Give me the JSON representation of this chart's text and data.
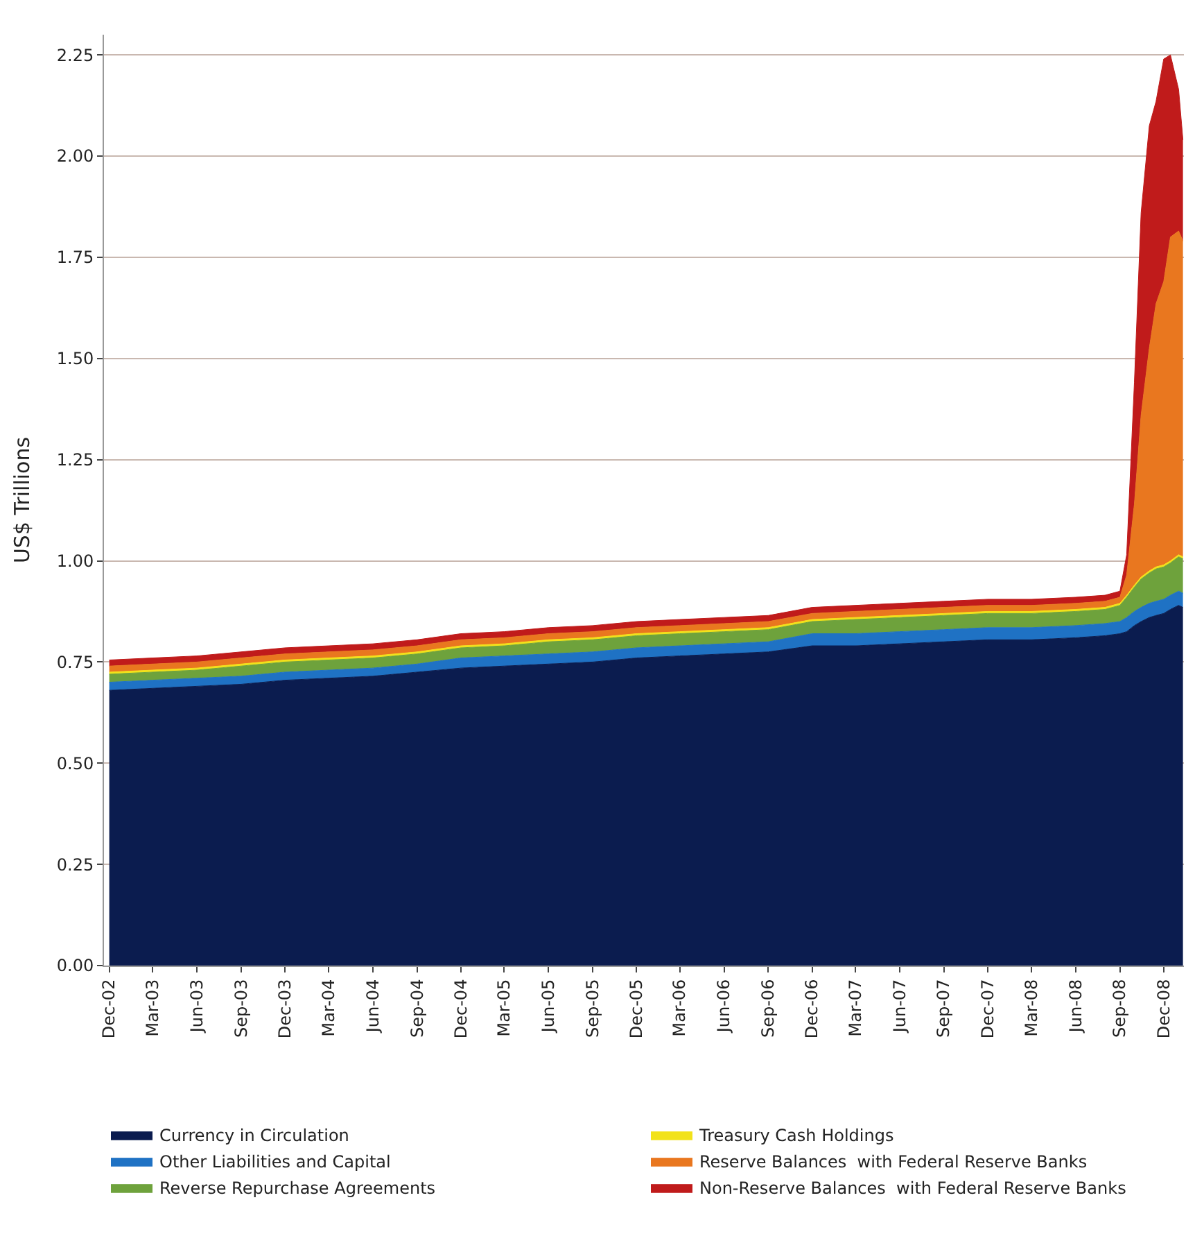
{
  "chart_data": {
    "type": "area",
    "stacked": true,
    "ylabel": "US$ Trillions",
    "legend": "bottom",
    "grid": "y",
    "x": [
      "2002-12-01",
      "2003-03-01",
      "2003-06-01",
      "2003-09-01",
      "2003-12-01",
      "2004-03-01",
      "2004-06-01",
      "2004-09-01",
      "2004-12-01",
      "2005-03-01",
      "2005-06-01",
      "2005-09-01",
      "2005-12-01",
      "2006-03-01",
      "2006-06-01",
      "2006-09-01",
      "2006-12-01",
      "2007-03-01",
      "2007-06-01",
      "2007-09-01",
      "2007-12-01",
      "2008-03-01",
      "2008-06-01",
      "2008-08-01",
      "2008-09-01",
      "2008-09-15",
      "2008-10-01",
      "2008-10-15",
      "2008-11-01",
      "2008-11-15",
      "2008-12-01",
      "2008-12-15",
      "2009-01-01",
      "2009-01-10"
    ],
    "series": [
      {
        "name": "Currency in Circulation",
        "color": "#0b1c4f",
        "values": [
          0.68,
          0.685,
          0.69,
          0.695,
          0.705,
          0.71,
          0.715,
          0.725,
          0.735,
          0.74,
          0.745,
          0.75,
          0.76,
          0.765,
          0.77,
          0.775,
          0.79,
          0.79,
          0.795,
          0.8,
          0.805,
          0.805,
          0.81,
          0.815,
          0.82,
          0.825,
          0.84,
          0.85,
          0.86,
          0.865,
          0.87,
          0.88,
          0.89,
          0.885
        ]
      },
      {
        "name": "Other Liabilities and Capital",
        "color": "#1f72c4",
        "values": [
          0.02,
          0.02,
          0.02,
          0.02,
          0.02,
          0.02,
          0.02,
          0.02,
          0.025,
          0.025,
          0.025,
          0.025,
          0.025,
          0.025,
          0.025,
          0.025,
          0.03,
          0.03,
          0.03,
          0.03,
          0.03,
          0.03,
          0.03,
          0.03,
          0.03,
          0.035,
          0.035,
          0.035,
          0.035,
          0.035,
          0.035,
          0.035,
          0.035,
          0.035
        ]
      },
      {
        "name": "Reverse Repurchase Agreements",
        "color": "#6ea23c",
        "values": [
          0.02,
          0.02,
          0.02,
          0.025,
          0.025,
          0.025,
          0.025,
          0.025,
          0.025,
          0.025,
          0.03,
          0.03,
          0.03,
          0.03,
          0.03,
          0.03,
          0.03,
          0.035,
          0.035,
          0.035,
          0.035,
          0.035,
          0.035,
          0.035,
          0.04,
          0.05,
          0.06,
          0.07,
          0.075,
          0.08,
          0.08,
          0.08,
          0.085,
          0.085
        ]
      },
      {
        "name": "Treasury Cash Holdings",
        "color": "#f2e21a",
        "values": [
          0.005,
          0.005,
          0.005,
          0.005,
          0.005,
          0.005,
          0.005,
          0.005,
          0.005,
          0.005,
          0.005,
          0.005,
          0.005,
          0.005,
          0.005,
          0.005,
          0.005,
          0.005,
          0.005,
          0.005,
          0.005,
          0.005,
          0.005,
          0.005,
          0.005,
          0.005,
          0.005,
          0.005,
          0.005,
          0.005,
          0.005,
          0.005,
          0.005,
          0.005
        ]
      },
      {
        "name": "Reserve Balances  with Federal Reserve Banks",
        "color": "#e9771f",
        "values": [
          0.015,
          0.015,
          0.015,
          0.015,
          0.015,
          0.015,
          0.015,
          0.015,
          0.015,
          0.015,
          0.015,
          0.015,
          0.015,
          0.015,
          0.015,
          0.015,
          0.015,
          0.015,
          0.015,
          0.015,
          0.015,
          0.015,
          0.015,
          0.015,
          0.015,
          0.05,
          0.2,
          0.4,
          0.55,
          0.65,
          0.7,
          0.8,
          0.8,
          0.78
        ]
      },
      {
        "name": "Non-Reserve Balances  with Federal Reserve Banks",
        "color": "#c01b1b",
        "values": [
          0.015,
          0.015,
          0.015,
          0.015,
          0.015,
          0.015,
          0.015,
          0.015,
          0.015,
          0.015,
          0.015,
          0.015,
          0.015,
          0.015,
          0.015,
          0.015,
          0.015,
          0.015,
          0.015,
          0.015,
          0.015,
          0.015,
          0.015,
          0.015,
          0.015,
          0.05,
          0.3,
          0.5,
          0.55,
          0.5,
          0.55,
          0.45,
          0.35,
          0.25
        ]
      }
    ],
    "xlim": [
      "2002-11-20",
      "2009-01-12"
    ],
    "xticks": [
      {
        "value": "2002-12-01",
        "label": "Dec-02"
      },
      {
        "value": "2003-03-01",
        "label": "Mar-03"
      },
      {
        "value": "2003-06-01",
        "label": "Jun-03"
      },
      {
        "value": "2003-09-01",
        "label": "Sep-03"
      },
      {
        "value": "2003-12-01",
        "label": "Dec-03"
      },
      {
        "value": "2004-03-01",
        "label": "Mar-04"
      },
      {
        "value": "2004-06-01",
        "label": "Jun-04"
      },
      {
        "value": "2004-09-01",
        "label": "Sep-04"
      },
      {
        "value": "2004-12-01",
        "label": "Dec-04"
      },
      {
        "value": "2005-03-01",
        "label": "Mar-05"
      },
      {
        "value": "2005-06-01",
        "label": "Jun-05"
      },
      {
        "value": "2005-09-01",
        "label": "Sep-05"
      },
      {
        "value": "2005-12-01",
        "label": "Dec-05"
      },
      {
        "value": "2006-03-01",
        "label": "Mar-06"
      },
      {
        "value": "2006-06-01",
        "label": "Jun-06"
      },
      {
        "value": "2006-09-01",
        "label": "Sep-06"
      },
      {
        "value": "2006-12-01",
        "label": "Dec-06"
      },
      {
        "value": "2007-03-01",
        "label": "Mar-07"
      },
      {
        "value": "2007-06-01",
        "label": "Jun-07"
      },
      {
        "value": "2007-09-01",
        "label": "Sep-07"
      },
      {
        "value": "2007-12-01",
        "label": "Dec-07"
      },
      {
        "value": "2008-03-01",
        "label": "Mar-08"
      },
      {
        "value": "2008-06-01",
        "label": "Jun-08"
      },
      {
        "value": "2008-09-01",
        "label": "Sep-08"
      },
      {
        "value": "2008-12-01",
        "label": "Dec-08"
      }
    ],
    "ylim": [
      0,
      2.3
    ],
    "yticks": [
      {
        "value": 0,
        "label": "0.00"
      },
      {
        "value": 0.25,
        "label": "0.25"
      },
      {
        "value": 0.5,
        "label": "0.50"
      },
      {
        "value": 0.75,
        "label": "0.75"
      },
      {
        "value": 1,
        "label": "1.00"
      },
      {
        "value": 1.25,
        "label": "1.25"
      },
      {
        "value": 1.5,
        "label": "1.50"
      },
      {
        "value": 1.75,
        "label": "1.75"
      },
      {
        "value": 2,
        "label": "2.00"
      },
      {
        "value": 2.25,
        "label": "2.25"
      }
    ]
  }
}
